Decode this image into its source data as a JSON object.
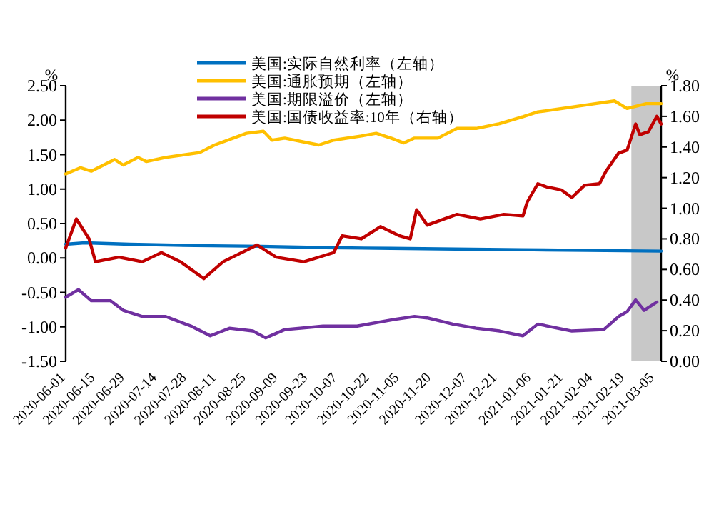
{
  "chart_data": {
    "type": "line",
    "ylabel": "%",
    "y2label": "%",
    "legend": "top",
    "xlim": [
      "2020-06-01",
      "2021-03-08"
    ],
    "xticks": [
      "2020-06-01",
      "2020-06-15",
      "2020-06-29",
      "2020-07-14",
      "2020-07-28",
      "2020-08-11",
      "2020-08-25",
      "2020-09-09",
      "2020-09-23",
      "2020-10-07",
      "2020-10-22",
      "2020-11-05",
      "2020-11-20",
      "2020-12-07",
      "2020-12-21",
      "2021-01-06",
      "2021-01-21",
      "2021-02-04",
      "2021-02-19",
      "2021-03-05"
    ],
    "ylim": [
      -1.5,
      2.5
    ],
    "yticks": [
      {
        "value": -1.5,
        "label": "-1.50"
      },
      {
        "value": -1,
        "label": "-1.00"
      },
      {
        "value": -0.5,
        "label": "-0.50"
      },
      {
        "value": 0,
        "label": "0.00"
      },
      {
        "value": 0.5,
        "label": "0.50"
      },
      {
        "value": 1,
        "label": "1.00"
      },
      {
        "value": 1.5,
        "label": "1.50"
      },
      {
        "value": 2,
        "label": "2.00"
      },
      {
        "value": 2.5,
        "label": "2.50"
      }
    ],
    "y2lim": [
      0,
      1.8
    ],
    "y2ticks": [
      {
        "value": 0,
        "label": "0.00"
      },
      {
        "value": 0.2,
        "label": "0.20"
      },
      {
        "value": 0.4,
        "label": "0.40"
      },
      {
        "value": 0.6,
        "label": "0.60"
      },
      {
        "value": 0.8,
        "label": "0.80"
      },
      {
        "value": 1,
        "label": "1.00"
      },
      {
        "value": 1.2,
        "label": "1.20"
      },
      {
        "value": 1.4,
        "label": "1.40"
      },
      {
        "value": 1.6,
        "label": "1.60"
      },
      {
        "value": 1.8,
        "label": "1.80"
      }
    ],
    "bands": [
      {
        "axis": "x",
        "from": "2021-02-22",
        "to": "2021-03-08",
        "color": "#c8c8c8"
      }
    ],
    "series": [
      {
        "name": "美国:实际自然利率（左轴）",
        "color": "#0070c0",
        "x": [
          "2020-06-01",
          "2020-06-10",
          "2020-07-01",
          "2020-08-01",
          "2020-09-01",
          "2020-10-01",
          "2020-11-01",
          "2020-12-01",
          "2021-01-01",
          "2021-02-01",
          "2021-03-08"
        ],
        "values": [
          0.2,
          0.22,
          0.2,
          0.18,
          0.17,
          0.15,
          0.14,
          0.13,
          0.12,
          0.11,
          0.1
        ]
      },
      {
        "name": "美国:通胀预期（左轴）",
        "color": "#ffc000",
        "x": [
          "2020-06-01",
          "2020-06-08",
          "2020-06-13",
          "2020-06-24",
          "2020-06-28",
          "2020-07-05",
          "2020-07-09",
          "2020-07-18",
          "2020-08-03",
          "2020-08-10",
          "2020-08-25",
          "2020-09-02",
          "2020-09-06",
          "2020-09-12",
          "2020-09-28",
          "2020-10-05",
          "2020-10-18",
          "2020-10-25",
          "2020-11-01",
          "2020-11-07",
          "2020-11-12",
          "2020-11-23",
          "2020-12-02",
          "2020-12-11",
          "2020-12-22",
          "2021-01-02",
          "2021-01-09",
          "2021-01-25",
          "2021-02-05",
          "2021-02-14",
          "2021-02-20",
          "2021-03-01",
          "2021-03-08"
        ],
        "values": [
          1.22,
          1.31,
          1.26,
          1.43,
          1.35,
          1.46,
          1.4,
          1.46,
          1.53,
          1.64,
          1.81,
          1.84,
          1.71,
          1.74,
          1.64,
          1.71,
          1.77,
          1.81,
          1.74,
          1.67,
          1.74,
          1.74,
          1.88,
          1.88,
          1.95,
          2.05,
          2.12,
          2.19,
          2.24,
          2.28,
          2.17,
          2.24,
          2.24
        ]
      },
      {
        "name": "美国:期限溢价（左轴）",
        "color": "#7030a0",
        "x": [
          "2020-06-01",
          "2020-06-07",
          "2020-06-13",
          "2020-06-22",
          "2020-06-28",
          "2020-07-07",
          "2020-07-18",
          "2020-07-30",
          "2020-08-08",
          "2020-08-17",
          "2020-08-28",
          "2020-09-03",
          "2020-09-12",
          "2020-09-30",
          "2020-10-16",
          "2020-11-03",
          "2020-11-12",
          "2020-11-18",
          "2020-11-30",
          "2020-12-11",
          "2020-12-22",
          "2021-01-02",
          "2021-01-09",
          "2021-01-25",
          "2021-02-09",
          "2021-02-16",
          "2021-02-20",
          "2021-02-24",
          "2021-02-28",
          "2021-03-06"
        ],
        "values": [
          -0.57,
          -0.46,
          -0.62,
          -0.62,
          -0.76,
          -0.85,
          -0.85,
          -0.99,
          -1.13,
          -1.02,
          -1.06,
          -1.16,
          -1.04,
          -0.99,
          -0.99,
          -0.89,
          -0.85,
          -0.87,
          -0.96,
          -1.02,
          -1.06,
          -1.13,
          -0.96,
          -1.06,
          -1.04,
          -0.85,
          -0.78,
          -0.61,
          -0.76,
          -0.64
        ]
      },
      {
        "name": "美国:国债收益率:10年（右轴）",
        "color": "#c00000",
        "axis": "y2",
        "x": [
          "2020-06-01",
          "2020-06-06",
          "2020-06-12",
          "2020-06-15",
          "2020-06-26",
          "2020-07-07",
          "2020-07-16",
          "2020-07-25",
          "2020-08-05",
          "2020-08-14",
          "2020-08-30",
          "2020-09-08",
          "2020-09-21",
          "2020-10-05",
          "2020-10-09",
          "2020-10-18",
          "2020-10-27",
          "2020-11-05",
          "2020-11-10",
          "2020-11-13",
          "2020-11-18",
          "2020-12-02",
          "2020-12-13",
          "2020-12-24",
          "2021-01-02",
          "2021-01-04",
          "2021-01-09",
          "2021-01-13",
          "2021-01-20",
          "2021-01-25",
          "2021-01-31",
          "2021-02-07",
          "2021-02-10",
          "2021-02-16",
          "2021-02-20",
          "2021-02-24",
          "2021-02-26",
          "2021-03-02",
          "2021-03-06",
          "2021-03-08"
        ],
        "values": [
          0.74,
          0.93,
          0.8,
          0.65,
          0.68,
          0.65,
          0.71,
          0.65,
          0.54,
          0.65,
          0.76,
          0.68,
          0.65,
          0.71,
          0.82,
          0.8,
          0.88,
          0.82,
          0.8,
          0.99,
          0.89,
          0.96,
          0.93,
          0.96,
          0.95,
          1.04,
          1.16,
          1.14,
          1.12,
          1.07,
          1.15,
          1.16,
          1.24,
          1.36,
          1.38,
          1.55,
          1.48,
          1.5,
          1.6,
          1.55
        ]
      }
    ]
  }
}
